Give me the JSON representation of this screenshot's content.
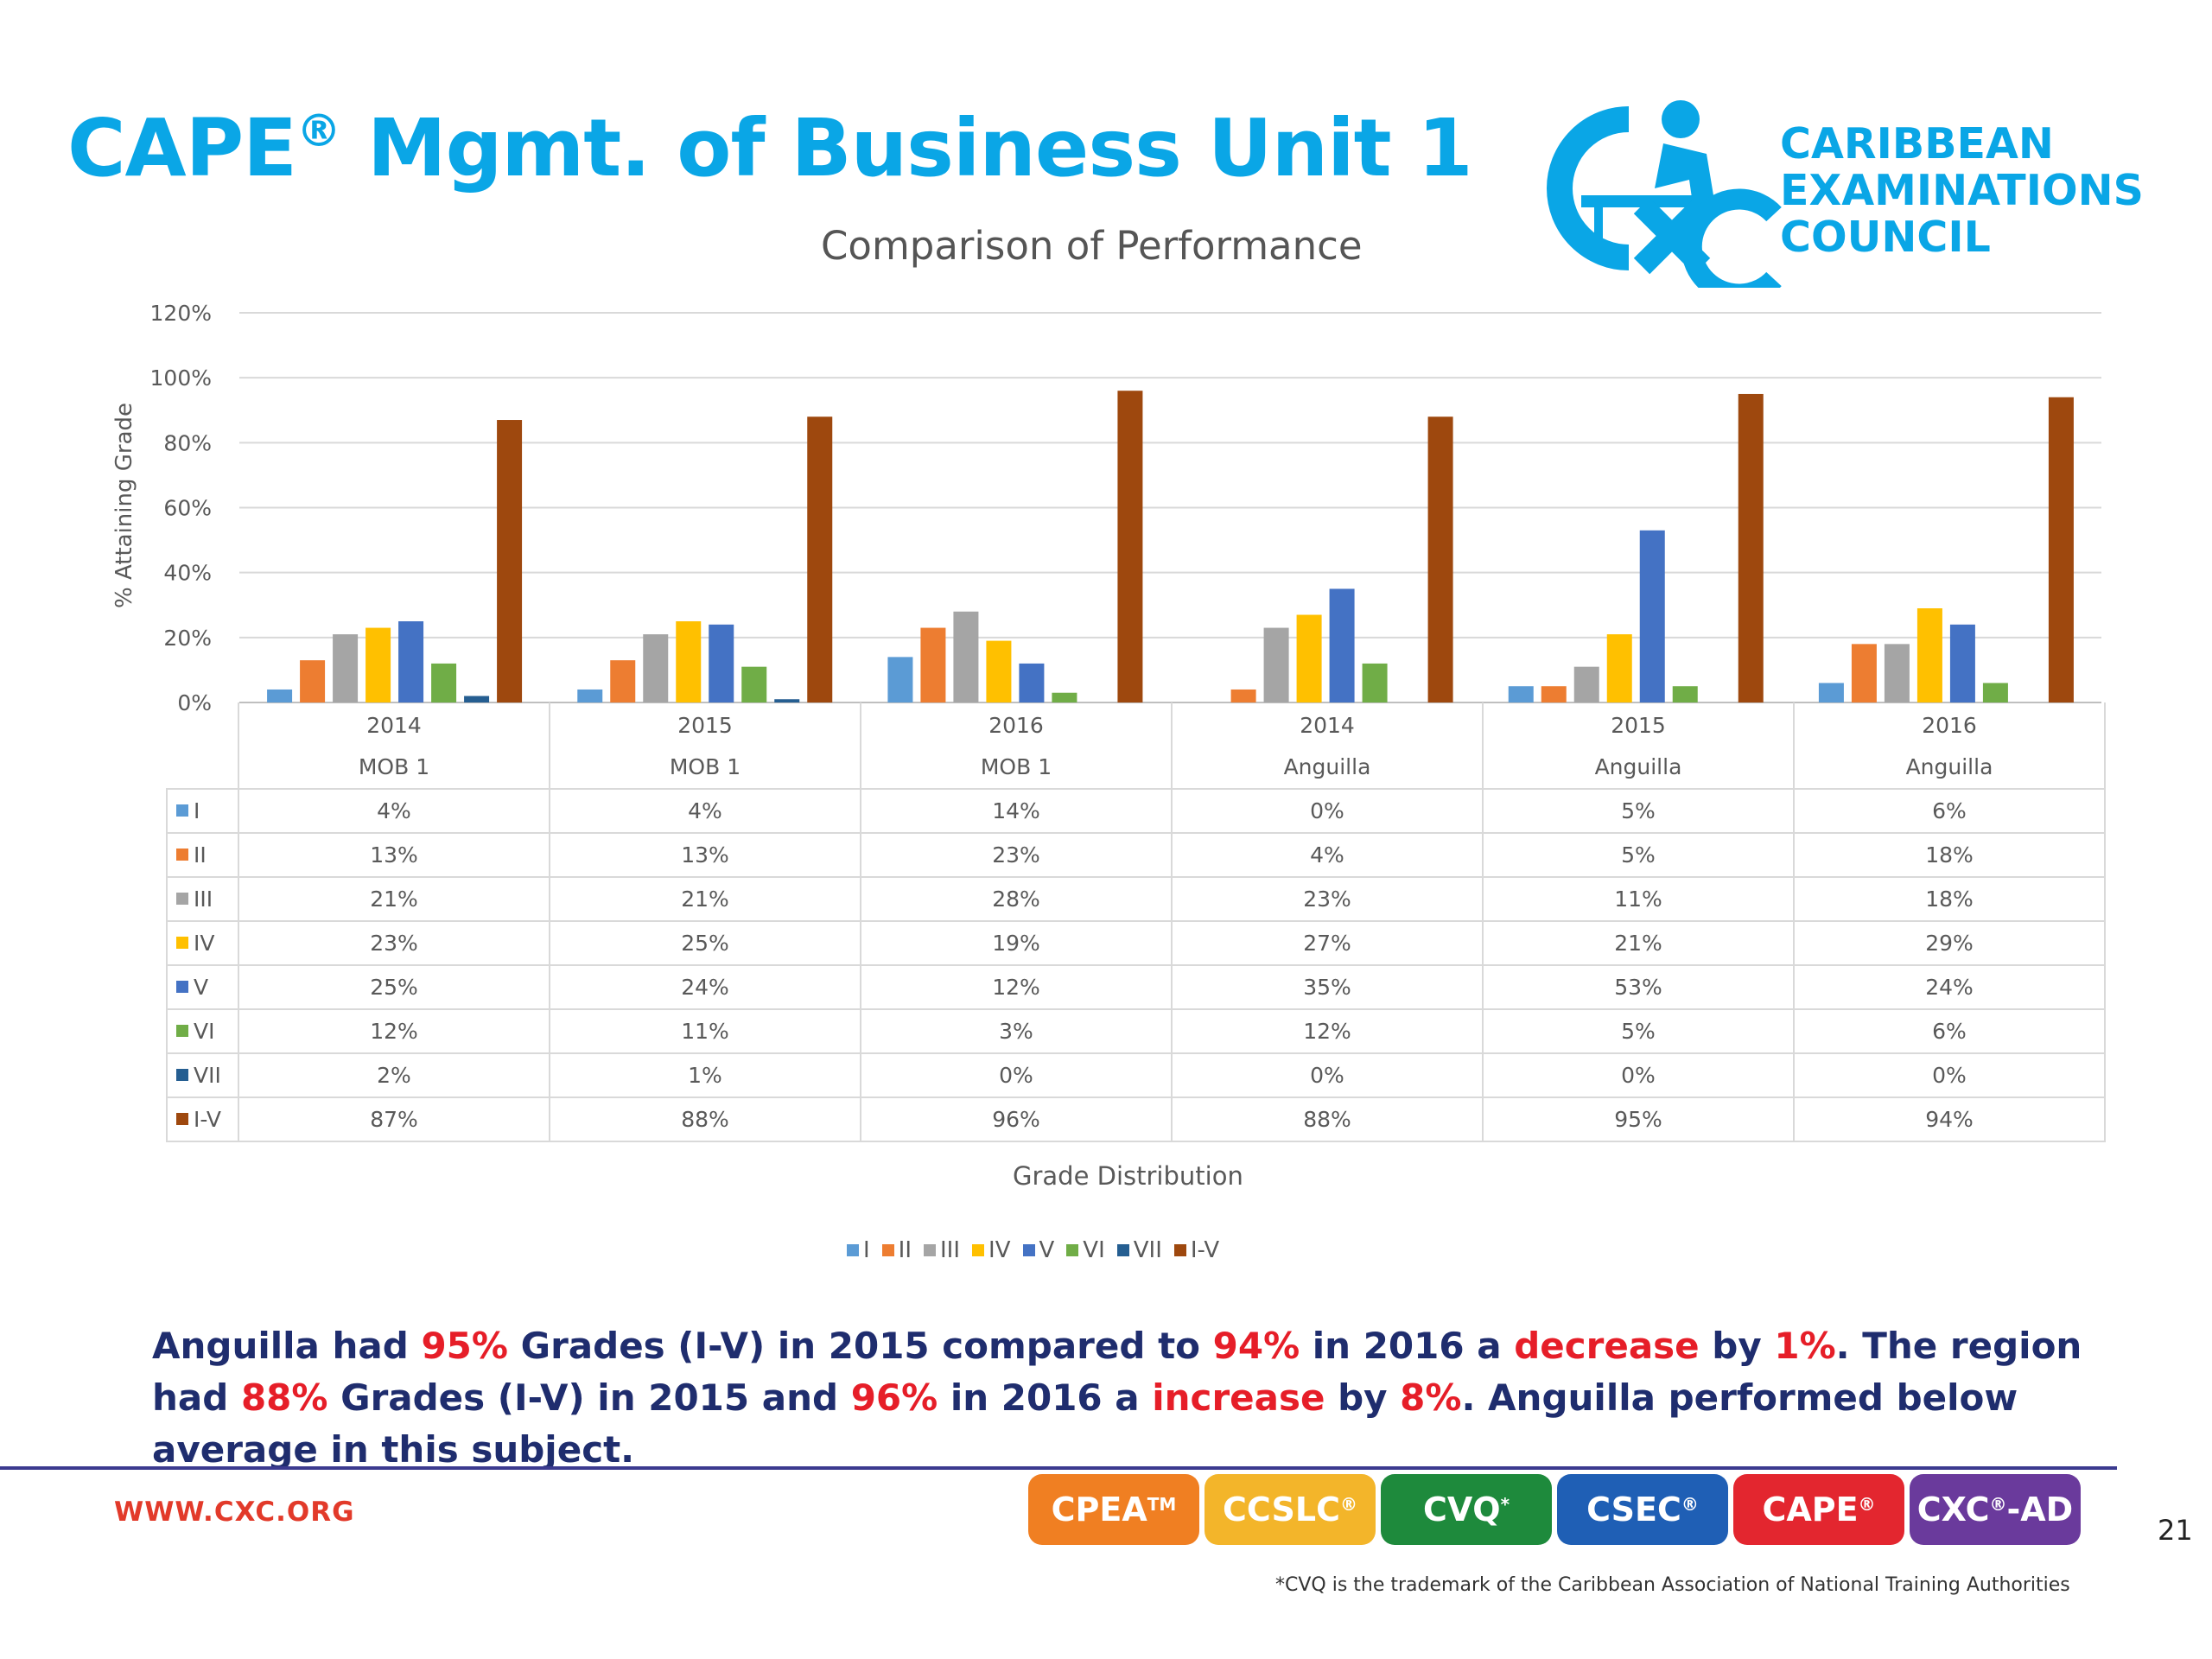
{
  "slide": {
    "title_main": "CAPE",
    "title_mark": "®",
    "title_rest": " Mgmt. of Business Unit 1",
    "logo_lines": [
      "CARIBBEAN",
      "EXAMINATIONS",
      "COUNCIL"
    ],
    "summary": [
      {
        "t": "Anguilla had ",
        "h": false
      },
      {
        "t": "95%",
        "h": true
      },
      {
        "t": " Grades (I-V) in 2015 compared to ",
        "h": false
      },
      {
        "t": "94%",
        "h": true
      },
      {
        "t": " in 2016 a ",
        "h": false
      },
      {
        "t": "decrease",
        "h": true
      },
      {
        "t": " by ",
        "h": false
      },
      {
        "t": "1%",
        "h": true
      },
      {
        "t": ". The region had ",
        "h": false
      },
      {
        "t": "88%",
        "h": true
      },
      {
        "t": " Grades (I-V) in 2015 and ",
        "h": false
      },
      {
        "t": "96%",
        "h": true
      },
      {
        "t": " in 2016 a ",
        "h": false
      },
      {
        "t": "increase",
        "h": true
      },
      {
        "t": " by ",
        "h": false
      },
      {
        "t": "8%",
        "h": true
      },
      {
        "t": ". Anguilla performed below average in this subject.",
        "h": false
      }
    ],
    "website": "WWW.CXC.ORG",
    "badges": [
      {
        "label": "CPEA",
        "mark": "TM",
        "color": "#f07f22"
      },
      {
        "label": "CCSLC",
        "mark": "®",
        "color": "#f3b52a"
      },
      {
        "label": "CVQ",
        "mark": "*",
        "color": "#1e8a3c"
      },
      {
        "label": "CSEC",
        "mark": "®",
        "color": "#1f5fb5"
      },
      {
        "label": "CAPE",
        "mark": "®",
        "color": "#e3262f"
      },
      {
        "label": "CXC",
        "mark": "®",
        "suffix": "-AD",
        "color": "#6a3a9c"
      }
    ],
    "page_number": "21",
    "footnote": "*CVQ is the trademark of the Caribbean Association of National Training Authorities"
  },
  "chart_data": {
    "type": "bar",
    "title": "Comparison of Performance",
    "xlabel": "Grade Distribution",
    "ylabel": "% Attaining Grade",
    "ylim": [
      0,
      120
    ],
    "yticks": [
      "0%",
      "20%",
      "40%",
      "60%",
      "80%",
      "100%",
      "120%"
    ],
    "grid": true,
    "legend_position": "bottom",
    "categories": [
      {
        "year": "2014",
        "group": "MOB 1"
      },
      {
        "year": "2015",
        "group": "MOB 1"
      },
      {
        "year": "2016",
        "group": "MOB 1"
      },
      {
        "year": "2014",
        "group": "Anguilla"
      },
      {
        "year": "2015",
        "group": "Anguilla"
      },
      {
        "year": "2016",
        "group": "Anguilla"
      }
    ],
    "series": [
      {
        "name": "I",
        "color": "#5b9bd5",
        "values": [
          4,
          4,
          14,
          0,
          5,
          6
        ]
      },
      {
        "name": "II",
        "color": "#ed7d31",
        "values": [
          13,
          13,
          23,
          4,
          5,
          18
        ]
      },
      {
        "name": "III",
        "color": "#a5a5a5",
        "values": [
          21,
          21,
          28,
          23,
          11,
          18
        ]
      },
      {
        "name": "IV",
        "color": "#ffc000",
        "values": [
          23,
          25,
          19,
          27,
          21,
          29
        ]
      },
      {
        "name": "V",
        "color": "#4472c4",
        "values": [
          25,
          24,
          12,
          35,
          53,
          24
        ]
      },
      {
        "name": "VI",
        "color": "#70ad47",
        "values": [
          12,
          11,
          3,
          12,
          5,
          6
        ]
      },
      {
        "name": "VII",
        "color": "#255e91",
        "values": [
          2,
          1,
          0,
          0,
          0,
          0
        ]
      },
      {
        "name": "I-V",
        "color": "#9e480e",
        "values": [
          87,
          88,
          96,
          88,
          95,
          94
        ]
      }
    ]
  }
}
